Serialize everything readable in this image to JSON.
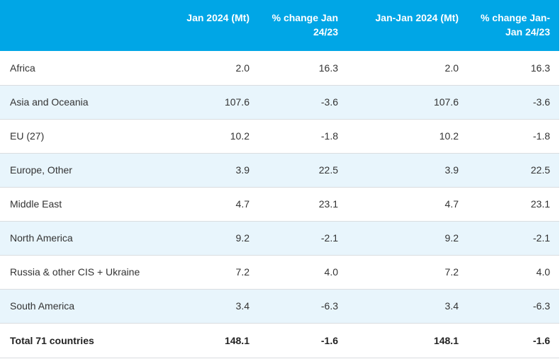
{
  "table": {
    "headers": [
      "",
      "Jan 2024 (Mt)",
      "% change Jan 24/23",
      "Jan-Jan 2024 (Mt)",
      "% change Jan-Jan 24/23"
    ],
    "rows": [
      [
        "Africa",
        "2.0",
        "16.3",
        "2.0",
        "16.3"
      ],
      [
        "Asia and Oceania",
        "107.6",
        "-3.6",
        "107.6",
        "-3.6"
      ],
      [
        "EU (27)",
        "10.2",
        "-1.8",
        "10.2",
        "-1.8"
      ],
      [
        "Europe, Other",
        "3.9",
        "22.5",
        "3.9",
        "22.5"
      ],
      [
        "Middle East",
        "4.7",
        "23.1",
        "4.7",
        "23.1"
      ],
      [
        "North America",
        "9.2",
        "-2.1",
        "9.2",
        "-2.1"
      ],
      [
        "Russia & other CIS + Ukraine",
        "7.2",
        "4.0",
        "7.2",
        "4.0"
      ],
      [
        "South America",
        "3.4",
        "-6.3",
        "3.4",
        "-6.3"
      ],
      [
        "Total 71 countries",
        "148.1",
        "-1.6",
        "148.1",
        "-1.6"
      ]
    ]
  },
  "colors": {
    "header_bg": "#00a6e6",
    "alt_row_bg": "#e8f5fc",
    "row_border": "#d9dde0"
  }
}
